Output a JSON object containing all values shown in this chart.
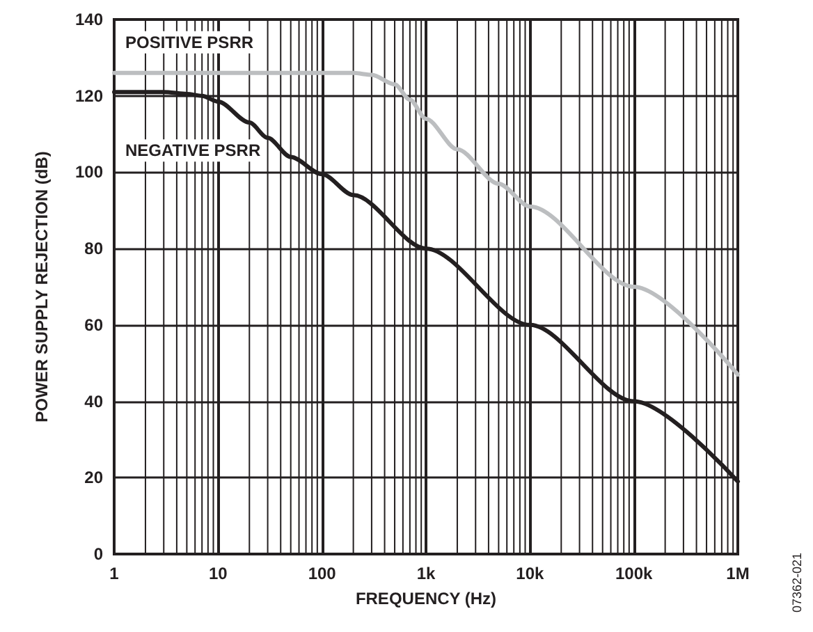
{
  "chart_data": {
    "type": "line",
    "xlabel": "FREQUENCY (Hz)",
    "ylabel": "POWER SUPPLY REJECTION (dB)",
    "log": "x",
    "grid": true,
    "marker": "none",
    "legend": false,
    "xlim": [
      1,
      1000000
    ],
    "xticks": [
      {
        "value": 1,
        "label": "1"
      },
      {
        "value": 10,
        "label": "10"
      },
      {
        "value": 100,
        "label": "100"
      },
      {
        "value": 1000,
        "label": "1k"
      },
      {
        "value": 10000,
        "label": "10k"
      },
      {
        "value": 100000,
        "label": "100k"
      },
      {
        "value": 1000000,
        "label": "1M"
      }
    ],
    "ylim": [
      0,
      140
    ],
    "yticks": [
      0,
      20,
      40,
      60,
      80,
      100,
      120,
      140
    ],
    "series": [
      {
        "name": "POSITIVE PSRR",
        "color": "#bcbec0",
        "x": [
          1,
          10,
          100,
          200,
          300,
          500,
          700,
          1000,
          2000,
          5000,
          10000,
          100000,
          1000000
        ],
        "values": [
          126,
          126,
          126,
          126,
          125.5,
          123,
          119,
          114,
          106,
          97,
          91,
          70,
          47
        ]
      },
      {
        "name": "NEGATIVE PSRR",
        "color": "#231f20",
        "x": [
          1,
          3,
          5,
          7,
          10,
          20,
          30,
          50,
          100,
          200,
          1000,
          10000,
          100000,
          1000000
        ],
        "values": [
          121,
          121,
          120.5,
          120,
          118.5,
          113,
          109,
          104,
          99.5,
          94,
          80,
          60,
          40,
          19
        ]
      }
    ],
    "annotations": [
      "07362-021"
    ]
  }
}
